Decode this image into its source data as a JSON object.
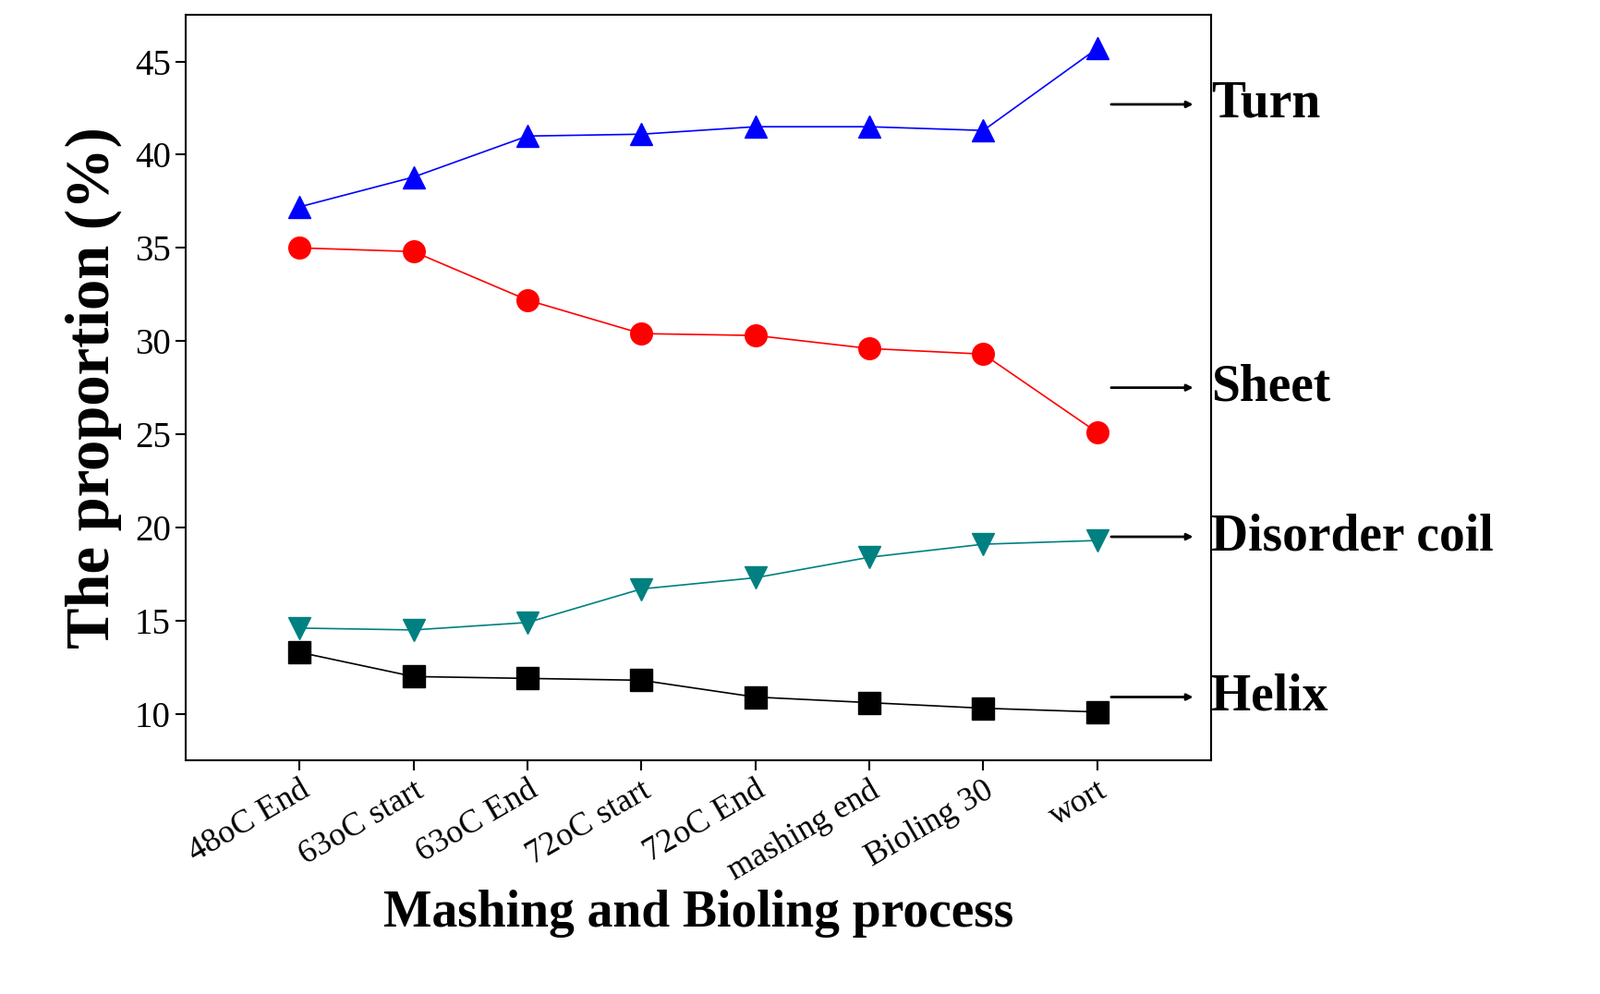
{
  "chart_data": {
    "type": "line",
    "x_label": "Mashing and Bioling process",
    "y_label": "The proportion (%)",
    "categories": [
      "48oC End",
      "63oC start",
      "63oC End",
      "72oC start",
      "72oC End",
      "mashing end",
      "Bioling 30",
      "wort"
    ],
    "series": [
      {
        "name": "Turn",
        "color": "#0000ff",
        "marker": "^",
        "values": [
          37.2,
          38.8,
          41.0,
          41.1,
          41.5,
          41.5,
          41.3,
          45.7
        ]
      },
      {
        "name": "Sheet",
        "color": "#ff0000",
        "marker": "o",
        "values": [
          35.0,
          34.8,
          32.2,
          30.4,
          30.3,
          29.6,
          29.3,
          25.1
        ]
      },
      {
        "name": "Disorder coil",
        "color": "#008080",
        "marker": "v",
        "values": [
          14.6,
          14.5,
          14.9,
          16.7,
          17.3,
          18.4,
          19.1,
          19.3
        ]
      },
      {
        "name": "Helix",
        "color": "#000000",
        "marker": "s",
        "values": [
          13.3,
          12.0,
          11.9,
          11.8,
          10.9,
          10.6,
          10.3,
          10.1
        ]
      }
    ],
    "ylim": [
      7.5,
      47.5
    ],
    "yticks": [
      10,
      15,
      20,
      25,
      30,
      35,
      40,
      45
    ],
    "grid": false
  }
}
